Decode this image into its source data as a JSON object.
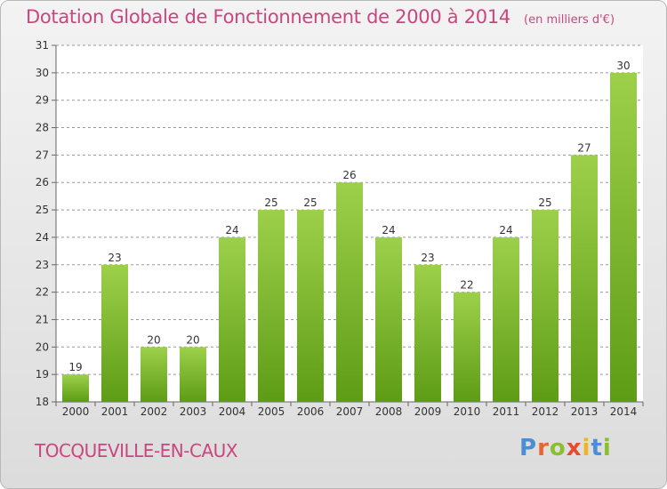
{
  "header": {
    "title": "Dotation Globale de Fonctionnement de 2000 à 2014",
    "unit": "(en milliers d'€)"
  },
  "footer": {
    "city": "TOCQUEVILLE-EN-CAUX",
    "logo_text": "Proxiti"
  },
  "colors": {
    "title": "#c9467e",
    "bar_light": "#9dd04a",
    "bar_dark": "#5e9c16",
    "grid": "#999999",
    "logo_letters": [
      "#4a8fd4",
      "#e8662e",
      "#8bbf2f",
      "#e84a2e",
      "#f0b323",
      "#4a8fd4",
      "#8bbf2f"
    ]
  },
  "chart_data": {
    "type": "bar",
    "title": "Dotation Globale de Fonctionnement de 2000 à 2014",
    "subtitle": "(en milliers d'€)",
    "xlabel": "",
    "ylabel": "",
    "categories": [
      "2000",
      "2001",
      "2002",
      "2003",
      "2004",
      "2005",
      "2006",
      "2007",
      "2008",
      "2009",
      "2010",
      "2011",
      "2012",
      "2013",
      "2014"
    ],
    "values": [
      19,
      23,
      20,
      20,
      24,
      25,
      25,
      26,
      24,
      23,
      22,
      24,
      25,
      27,
      30
    ],
    "ylim": [
      18,
      31
    ],
    "yticks": [
      18,
      19,
      20,
      21,
      22,
      23,
      24,
      25,
      26,
      27,
      28,
      29,
      30,
      31
    ],
    "grid": true,
    "grid_style": "dashed horizontal",
    "data_labels": true
  }
}
